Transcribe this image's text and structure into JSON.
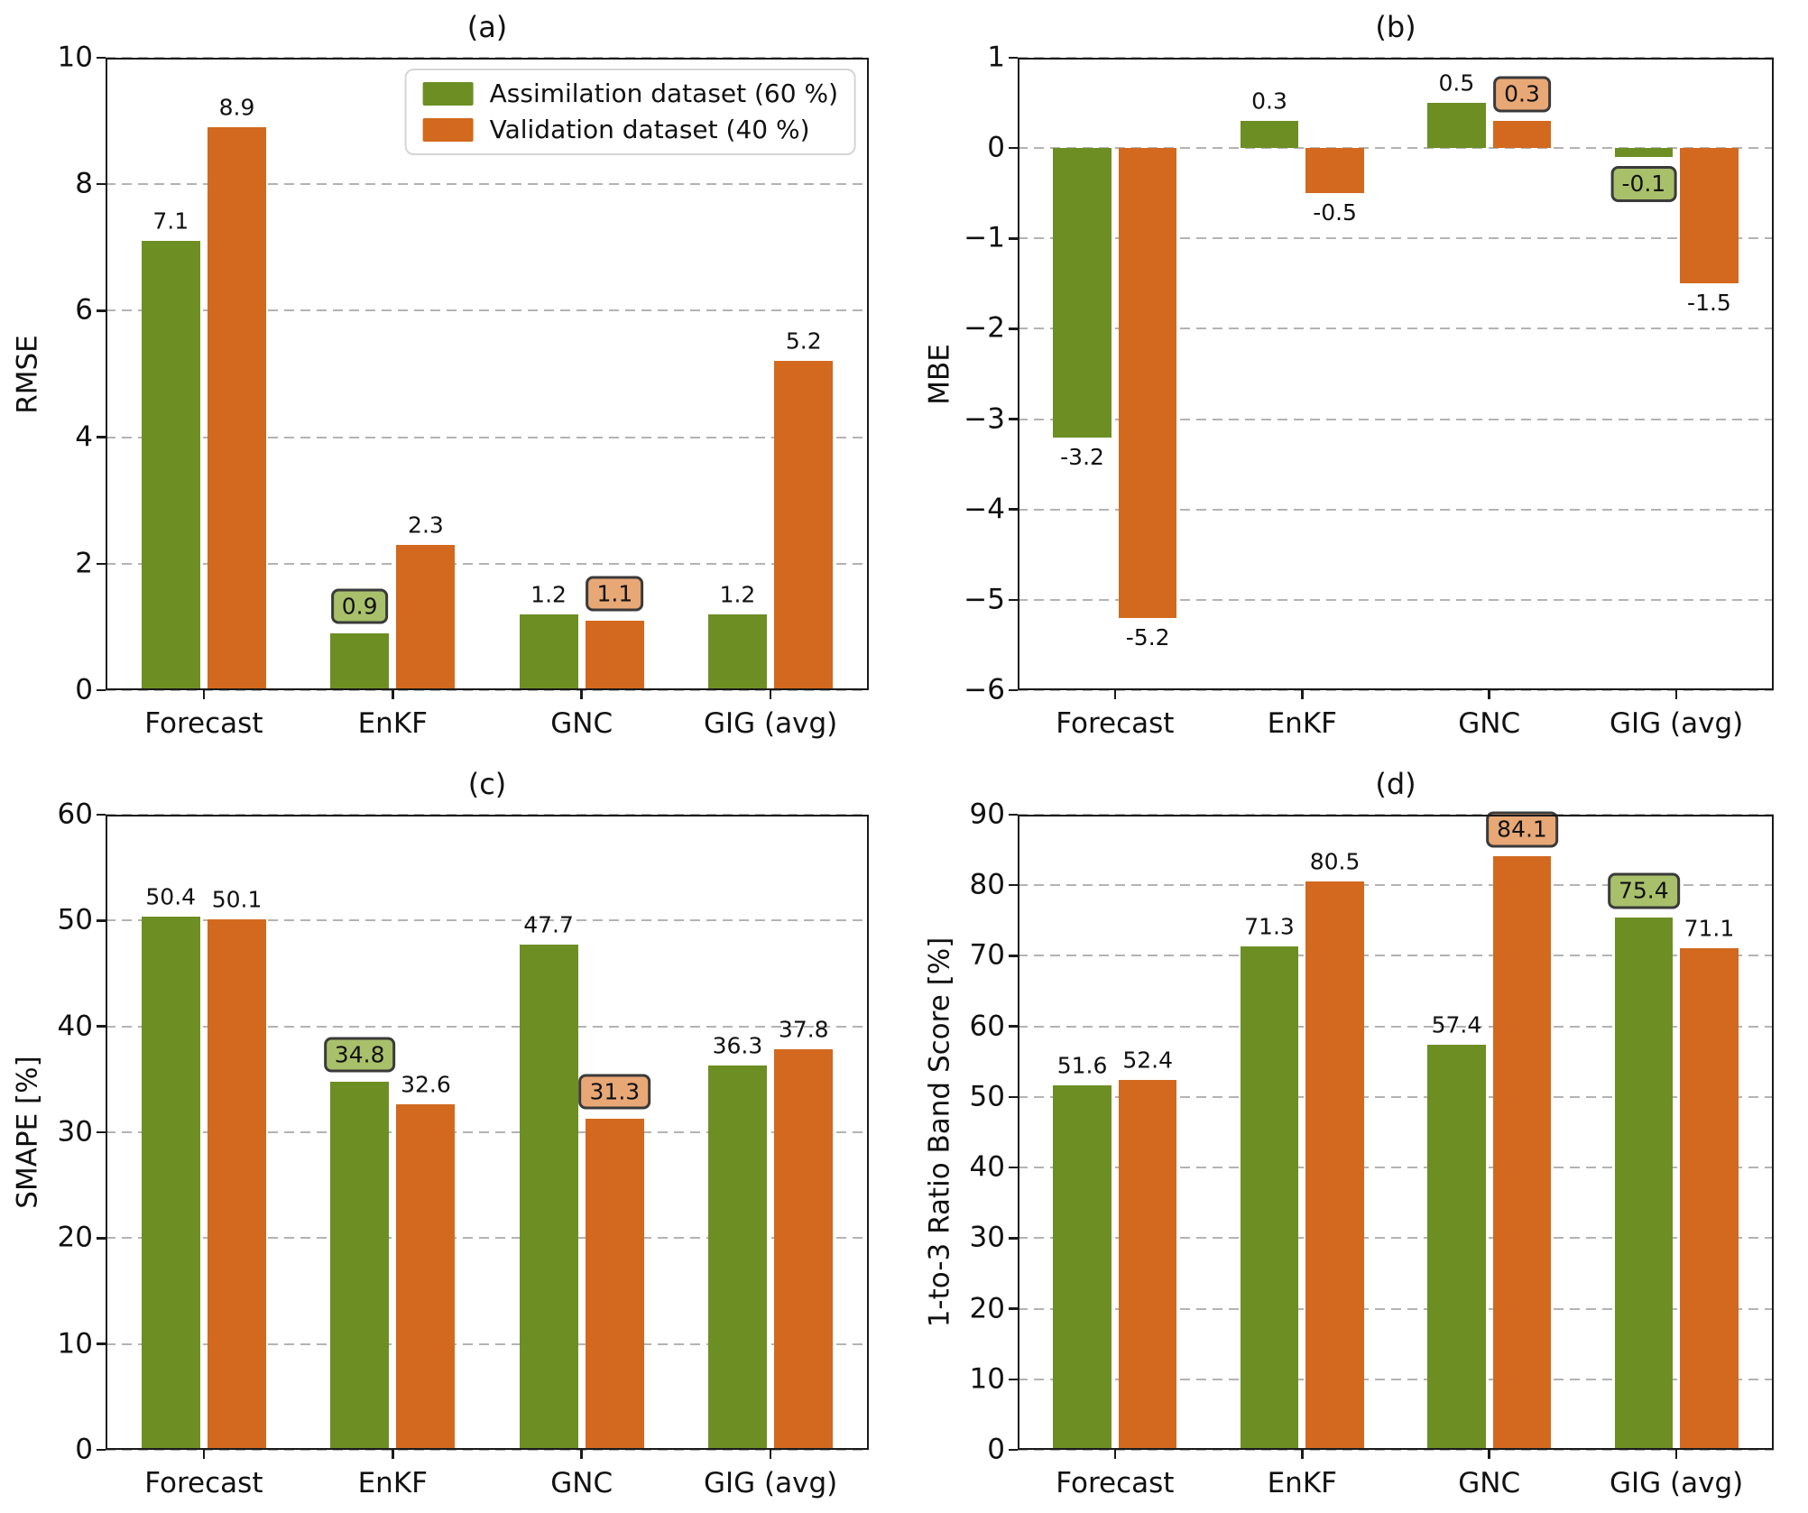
{
  "figure": {
    "background": "#ffffff"
  },
  "colors": {
    "assimilation": "#6d8e23",
    "validation": "#d2691e",
    "assimilation_box_fill": "#a9c06b",
    "validation_box_fill": "#e8a876",
    "box_border": "#3a3a3a",
    "grid": "#b3b3b3",
    "axis": "#1a1a1a",
    "text": "#111111"
  },
  "legend": {
    "position": "top-right-inside-panel-a",
    "items": [
      {
        "label": "Assimilation dataset (60 %)",
        "color_key": "assimilation"
      },
      {
        "label": "Validation dataset (40 %)",
        "color_key": "validation"
      }
    ]
  },
  "chart_data": [
    {
      "id": "a",
      "type": "bar",
      "title": "(a)",
      "ylabel": "RMSE",
      "ylim": [
        0,
        10
      ],
      "ytick_step": 2,
      "grid": "dashed-horizontal",
      "legend": true,
      "categories": [
        "Forecast",
        "EnKF",
        "GNC",
        "GIG (avg)"
      ],
      "series": [
        {
          "name": "Assimilation dataset (60 %)",
          "color_key": "assimilation",
          "values": [
            7.1,
            0.9,
            1.2,
            1.2
          ],
          "boxed": [
            false,
            true,
            false,
            false
          ]
        },
        {
          "name": "Validation dataset (40 %)",
          "color_key": "validation",
          "values": [
            8.9,
            2.3,
            1.1,
            5.2
          ],
          "boxed": [
            false,
            false,
            true,
            false
          ]
        }
      ]
    },
    {
      "id": "b",
      "type": "bar",
      "title": "(b)",
      "ylabel": "MBE",
      "ylim": [
        -6,
        1
      ],
      "ytick_step": 1,
      "grid": "dashed-horizontal",
      "legend": false,
      "categories": [
        "Forecast",
        "EnKF",
        "GNC",
        "GIG (avg)"
      ],
      "series": [
        {
          "name": "Assimilation dataset (60 %)",
          "color_key": "assimilation",
          "values": [
            -3.2,
            0.3,
            0.5,
            -0.1
          ],
          "boxed": [
            false,
            false,
            false,
            true
          ]
        },
        {
          "name": "Validation dataset (40 %)",
          "color_key": "validation",
          "values": [
            -5.2,
            -0.5,
            0.3,
            -1.5
          ],
          "boxed": [
            false,
            false,
            true,
            false
          ]
        }
      ]
    },
    {
      "id": "c",
      "type": "bar",
      "title": "(c)",
      "ylabel": "SMAPE [%]",
      "ylim": [
        0,
        60
      ],
      "ytick_step": 10,
      "grid": "dashed-horizontal",
      "legend": false,
      "categories": [
        "Forecast",
        "EnKF",
        "GNC",
        "GIG (avg)"
      ],
      "series": [
        {
          "name": "Assimilation dataset (60 %)",
          "color_key": "assimilation",
          "values": [
            50.4,
            34.8,
            47.7,
            36.3
          ],
          "boxed": [
            false,
            true,
            false,
            false
          ]
        },
        {
          "name": "Validation dataset (40 %)",
          "color_key": "validation",
          "values": [
            50.1,
            32.6,
            31.3,
            37.8
          ],
          "boxed": [
            false,
            false,
            true,
            false
          ]
        }
      ]
    },
    {
      "id": "d",
      "type": "bar",
      "title": "(d)",
      "ylabel": "1-to-3 Ratio Band Score [%]",
      "ylim": [
        0,
        90
      ],
      "ytick_step": 10,
      "grid": "dashed-horizontal",
      "legend": false,
      "categories": [
        "Forecast",
        "EnKF",
        "GNC",
        "GIG (avg)"
      ],
      "series": [
        {
          "name": "Assimilation dataset (60 %)",
          "color_key": "assimilation",
          "values": [
            51.6,
            71.3,
            57.4,
            75.4
          ],
          "boxed": [
            false,
            false,
            false,
            true
          ]
        },
        {
          "name": "Validation dataset (40 %)",
          "color_key": "validation",
          "values": [
            52.4,
            80.5,
            84.1,
            71.1
          ],
          "boxed": [
            false,
            false,
            true,
            false
          ]
        }
      ]
    }
  ]
}
